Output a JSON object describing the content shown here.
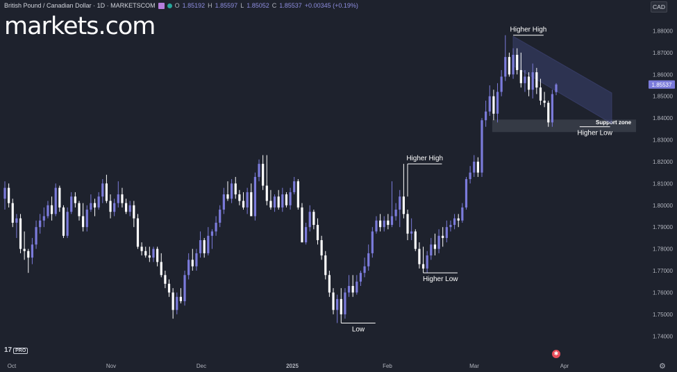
{
  "header": {
    "symbol": "British Pound / Canadian Dollar · 1D · MARKETSCOM",
    "open_label": "O",
    "open": "1.85192",
    "high_label": "H",
    "high": "1.85597",
    "low_label": "L",
    "low": "1.85052",
    "close_label": "C",
    "close": "1.85537",
    "change": "+0.00345 (+0.19%)"
  },
  "brand": "markets.com",
  "currency_button": "CAD",
  "tv_logo": "17",
  "tv_badge": "PRO",
  "colors": {
    "background": "#1e222d",
    "bull": "#7b7bdb",
    "bear": "#ffffff",
    "text": "#d1d4dc",
    "price_label": "#7b7bdb"
  },
  "chart_data": {
    "type": "candlestick",
    "y_axis": {
      "ticks": [
        "1.88000",
        "1.87000",
        "1.86000",
        "1.85000",
        "1.84000",
        "1.83000",
        "1.82000",
        "1.81000",
        "1.80000",
        "1.79000",
        "1.78000",
        "1.77000",
        "1.76000",
        "1.75000",
        "1.74000"
      ],
      "range": [
        1.735,
        1.883
      ]
    },
    "x_axis": {
      "ticks": [
        "Oct",
        "Nov",
        "Dec",
        "2025",
        "Jan",
        "Feb",
        "Mar",
        "Apr"
      ]
    },
    "last_price": "1.85537",
    "candles": [
      {
        "d": "2024-10-01",
        "o": 1.803,
        "h": 1.811,
        "l": 1.798,
        "c": 1.808
      },
      {
        "d": "2024-10-02",
        "o": 1.808,
        "h": 1.81,
        "l": 1.799,
        "c": 1.801
      },
      {
        "d": "2024-10-03",
        "o": 1.801,
        "h": 1.803,
        "l": 1.79,
        "c": 1.792
      },
      {
        "d": "2024-10-04",
        "o": 1.792,
        "h": 1.796,
        "l": 1.785,
        "c": 1.794
      },
      {
        "d": "2024-10-07",
        "o": 1.794,
        "h": 1.796,
        "l": 1.778,
        "c": 1.78
      },
      {
        "d": "2024-10-08",
        "o": 1.78,
        "h": 1.788,
        "l": 1.775,
        "c": 1.779
      },
      {
        "d": "2024-10-09",
        "o": 1.779,
        "h": 1.78,
        "l": 1.769,
        "c": 1.776
      },
      {
        "d": "2024-10-10",
        "o": 1.776,
        "h": 1.785,
        "l": 1.773,
        "c": 1.782
      },
      {
        "d": "2024-10-11",
        "o": 1.782,
        "h": 1.793,
        "l": 1.78,
        "c": 1.79
      },
      {
        "d": "2024-10-14",
        "o": 1.79,
        "h": 1.796,
        "l": 1.787,
        "c": 1.793
      },
      {
        "d": "2024-10-15",
        "o": 1.793,
        "h": 1.799,
        "l": 1.79,
        "c": 1.795
      },
      {
        "d": "2024-10-16",
        "o": 1.795,
        "h": 1.802,
        "l": 1.794,
        "c": 1.8
      },
      {
        "d": "2024-10-17",
        "o": 1.8,
        "h": 1.804,
        "l": 1.793,
        "c": 1.796
      },
      {
        "d": "2024-10-18",
        "o": 1.796,
        "h": 1.81,
        "l": 1.795,
        "c": 1.808
      },
      {
        "d": "2024-10-21",
        "o": 1.808,
        "h": 1.809,
        "l": 1.797,
        "c": 1.799
      },
      {
        "d": "2024-10-22",
        "o": 1.799,
        "h": 1.8,
        "l": 1.785,
        "c": 1.786
      },
      {
        "d": "2024-10-23",
        "o": 1.786,
        "h": 1.799,
        "l": 1.785,
        "c": 1.797
      },
      {
        "d": "2024-10-24",
        "o": 1.797,
        "h": 1.806,
        "l": 1.796,
        "c": 1.804
      },
      {
        "d": "2024-10-25",
        "o": 1.804,
        "h": 1.806,
        "l": 1.799,
        "c": 1.801
      },
      {
        "d": "2024-10-28",
        "o": 1.801,
        "h": 1.802,
        "l": 1.793,
        "c": 1.795
      },
      {
        "d": "2024-10-29",
        "o": 1.795,
        "h": 1.801,
        "l": 1.788,
        "c": 1.79
      },
      {
        "d": "2024-10-30",
        "o": 1.79,
        "h": 1.8,
        "l": 1.788,
        "c": 1.798
      },
      {
        "d": "2024-10-31",
        "o": 1.798,
        "h": 1.805,
        "l": 1.797,
        "c": 1.801
      },
      {
        "d": "2024-11-01",
        "o": 1.801,
        "h": 1.803,
        "l": 1.795,
        "c": 1.799
      },
      {
        "d": "2024-11-04",
        "o": 1.799,
        "h": 1.806,
        "l": 1.798,
        "c": 1.804
      },
      {
        "d": "2024-11-05",
        "o": 1.804,
        "h": 1.812,
        "l": 1.801,
        "c": 1.81
      },
      {
        "d": "2024-11-06",
        "o": 1.81,
        "h": 1.814,
        "l": 1.801,
        "c": 1.802
      },
      {
        "d": "2024-11-07",
        "o": 1.802,
        "h": 1.805,
        "l": 1.794,
        "c": 1.797
      },
      {
        "d": "2024-11-08",
        "o": 1.797,
        "h": 1.803,
        "l": 1.795,
        "c": 1.801
      },
      {
        "d": "2024-11-11",
        "o": 1.801,
        "h": 1.811,
        "l": 1.799,
        "c": 1.805
      },
      {
        "d": "2024-11-12",
        "o": 1.805,
        "h": 1.808,
        "l": 1.799,
        "c": 1.801
      },
      {
        "d": "2024-11-13",
        "o": 1.801,
        "h": 1.803,
        "l": 1.796,
        "c": 1.797
      },
      {
        "d": "2024-11-14",
        "o": 1.797,
        "h": 1.802,
        "l": 1.795,
        "c": 1.8
      },
      {
        "d": "2024-11-15",
        "o": 1.8,
        "h": 1.802,
        "l": 1.79,
        "c": 1.794
      },
      {
        "d": "2024-11-18",
        "o": 1.794,
        "h": 1.796,
        "l": 1.78,
        "c": 1.781
      },
      {
        "d": "2024-11-19",
        "o": 1.781,
        "h": 1.783,
        "l": 1.777,
        "c": 1.779
      },
      {
        "d": "2024-11-20",
        "o": 1.779,
        "h": 1.781,
        "l": 1.776,
        "c": 1.777
      },
      {
        "d": "2024-11-21",
        "o": 1.777,
        "h": 1.781,
        "l": 1.774,
        "c": 1.776
      },
      {
        "d": "2024-11-22",
        "o": 1.776,
        "h": 1.781,
        "l": 1.774,
        "c": 1.78
      },
      {
        "d": "2024-11-25",
        "o": 1.78,
        "h": 1.781,
        "l": 1.772,
        "c": 1.774
      },
      {
        "d": "2024-11-26",
        "o": 1.774,
        "h": 1.778,
        "l": 1.767,
        "c": 1.768
      },
      {
        "d": "2024-11-27",
        "o": 1.768,
        "h": 1.77,
        "l": 1.762,
        "c": 1.764
      },
      {
        "d": "2024-11-28",
        "o": 1.764,
        "h": 1.766,
        "l": 1.758,
        "c": 1.76
      },
      {
        "d": "2024-11-29",
        "o": 1.76,
        "h": 1.762,
        "l": 1.748,
        "c": 1.752
      },
      {
        "d": "2024-12-02",
        "o": 1.752,
        "h": 1.76,
        "l": 1.75,
        "c": 1.758
      },
      {
        "d": "2024-12-03",
        "o": 1.758,
        "h": 1.762,
        "l": 1.755,
        "c": 1.756
      },
      {
        "d": "2024-12-04",
        "o": 1.756,
        "h": 1.77,
        "l": 1.754,
        "c": 1.768
      },
      {
        "d": "2024-12-05",
        "o": 1.768,
        "h": 1.778,
        "l": 1.766,
        "c": 1.775
      },
      {
        "d": "2024-12-06",
        "o": 1.775,
        "h": 1.78,
        "l": 1.77,
        "c": 1.772
      },
      {
        "d": "2024-12-09",
        "o": 1.772,
        "h": 1.78,
        "l": 1.77,
        "c": 1.778
      },
      {
        "d": "2024-12-10",
        "o": 1.778,
        "h": 1.788,
        "l": 1.776,
        "c": 1.784
      },
      {
        "d": "2024-12-11",
        "o": 1.784,
        "h": 1.785,
        "l": 1.776,
        "c": 1.778
      },
      {
        "d": "2024-12-12",
        "o": 1.778,
        "h": 1.79,
        "l": 1.777,
        "c": 1.786
      },
      {
        "d": "2024-12-13",
        "o": 1.786,
        "h": 1.789,
        "l": 1.78,
        "c": 1.788
      },
      {
        "d": "2024-12-16",
        "o": 1.788,
        "h": 1.795,
        "l": 1.786,
        "c": 1.792
      },
      {
        "d": "2024-12-17",
        "o": 1.792,
        "h": 1.8,
        "l": 1.79,
        "c": 1.798
      },
      {
        "d": "2024-12-18",
        "o": 1.798,
        "h": 1.808,
        "l": 1.796,
        "c": 1.805
      },
      {
        "d": "2024-12-19",
        "o": 1.805,
        "h": 1.811,
        "l": 1.802,
        "c": 1.803
      },
      {
        "d": "2024-12-20",
        "o": 1.803,
        "h": 1.812,
        "l": 1.801,
        "c": 1.81
      },
      {
        "d": "2024-12-23",
        "o": 1.81,
        "h": 1.813,
        "l": 1.803,
        "c": 1.805
      },
      {
        "d": "2024-12-24",
        "o": 1.805,
        "h": 1.807,
        "l": 1.8,
        "c": 1.802
      },
      {
        "d": "2024-12-26",
        "o": 1.802,
        "h": 1.806,
        "l": 1.798,
        "c": 1.799
      },
      {
        "d": "2024-12-27",
        "o": 1.799,
        "h": 1.808,
        "l": 1.796,
        "c": 1.806
      },
      {
        "d": "2024-12-30",
        "o": 1.806,
        "h": 1.81,
        "l": 1.795,
        "c": 1.795
      },
      {
        "d": "2024-12-31",
        "o": 1.795,
        "h": 1.815,
        "l": 1.793,
        "c": 1.813
      },
      {
        "d": "2025-01-01",
        "o": 1.813,
        "h": 1.821,
        "l": 1.811,
        "c": 1.819
      },
      {
        "d": "2025-01-02",
        "o": 1.819,
        "h": 1.823,
        "l": 1.807,
        "c": 1.809
      },
      {
        "d": "2025-01-03",
        "o": 1.809,
        "h": 1.823,
        "l": 1.8,
        "c": 1.802
      },
      {
        "d": "2025-01-06",
        "o": 1.802,
        "h": 1.807,
        "l": 1.798,
        "c": 1.799
      },
      {
        "d": "2025-01-07",
        "o": 1.799,
        "h": 1.805,
        "l": 1.797,
        "c": 1.804
      },
      {
        "d": "2025-01-08",
        "o": 1.804,
        "h": 1.807,
        "l": 1.798,
        "c": 1.799
      },
      {
        "d": "2025-01-09",
        "o": 1.799,
        "h": 1.808,
        "l": 1.797,
        "c": 1.805
      },
      {
        "d": "2025-01-10",
        "o": 1.805,
        "h": 1.806,
        "l": 1.799,
        "c": 1.8
      },
      {
        "d": "2025-01-13",
        "o": 1.8,
        "h": 1.808,
        "l": 1.798,
        "c": 1.806
      },
      {
        "d": "2025-01-14",
        "o": 1.806,
        "h": 1.813,
        "l": 1.805,
        "c": 1.811
      },
      {
        "d": "2025-01-15",
        "o": 1.811,
        "h": 1.812,
        "l": 1.798,
        "c": 1.799
      },
      {
        "d": "2025-01-16",
        "o": 1.799,
        "h": 1.801,
        "l": 1.783,
        "c": 1.783
      },
      {
        "d": "2025-01-17",
        "o": 1.783,
        "h": 1.792,
        "l": 1.782,
        "c": 1.79
      },
      {
        "d": "2025-01-20",
        "o": 1.79,
        "h": 1.8,
        "l": 1.788,
        "c": 1.797
      },
      {
        "d": "2025-01-21",
        "o": 1.797,
        "h": 1.798,
        "l": 1.789,
        "c": 1.791
      },
      {
        "d": "2025-01-22",
        "o": 1.791,
        "h": 1.794,
        "l": 1.782,
        "c": 1.784
      },
      {
        "d": "2025-01-23",
        "o": 1.784,
        "h": 1.786,
        "l": 1.775,
        "c": 1.777
      },
      {
        "d": "2025-01-24",
        "o": 1.777,
        "h": 1.779,
        "l": 1.766,
        "c": 1.768
      },
      {
        "d": "2025-01-27",
        "o": 1.768,
        "h": 1.77,
        "l": 1.758,
        "c": 1.76
      },
      {
        "d": "2025-01-28",
        "o": 1.76,
        "h": 1.762,
        "l": 1.75,
        "c": 1.752
      },
      {
        "d": "2025-01-29",
        "o": 1.752,
        "h": 1.759,
        "l": 1.746,
        "c": 1.757
      },
      {
        "d": "2025-01-30",
        "o": 1.757,
        "h": 1.762,
        "l": 1.746,
        "c": 1.75
      },
      {
        "d": "2025-01-31",
        "o": 1.75,
        "h": 1.762,
        "l": 1.748,
        "c": 1.76
      },
      {
        "d": "2025-02-03",
        "o": 1.76,
        "h": 1.768,
        "l": 1.758,
        "c": 1.763
      },
      {
        "d": "2025-02-04",
        "o": 1.763,
        "h": 1.768,
        "l": 1.758,
        "c": 1.76
      },
      {
        "d": "2025-02-05",
        "o": 1.76,
        "h": 1.768,
        "l": 1.759,
        "c": 1.765
      },
      {
        "d": "2025-02-06",
        "o": 1.765,
        "h": 1.77,
        "l": 1.763,
        "c": 1.769
      },
      {
        "d": "2025-02-07",
        "o": 1.769,
        "h": 1.776,
        "l": 1.767,
        "c": 1.772
      },
      {
        "d": "2025-02-10",
        "o": 1.772,
        "h": 1.782,
        "l": 1.77,
        "c": 1.778
      },
      {
        "d": "2025-02-11",
        "o": 1.778,
        "h": 1.79,
        "l": 1.776,
        "c": 1.788
      },
      {
        "d": "2025-02-12",
        "o": 1.788,
        "h": 1.795,
        "l": 1.787,
        "c": 1.793
      },
      {
        "d": "2025-02-13",
        "o": 1.793,
        "h": 1.796,
        "l": 1.788,
        "c": 1.79
      },
      {
        "d": "2025-02-14",
        "o": 1.79,
        "h": 1.795,
        "l": 1.788,
        "c": 1.793
      },
      {
        "d": "2025-02-17",
        "o": 1.793,
        "h": 1.796,
        "l": 1.789,
        "c": 1.791
      },
      {
        "d": "2025-02-18",
        "o": 1.791,
        "h": 1.811,
        "l": 1.79,
        "c": 1.795
      },
      {
        "d": "2025-02-19",
        "o": 1.795,
        "h": 1.801,
        "l": 1.793,
        "c": 1.798
      },
      {
        "d": "2025-02-20",
        "o": 1.798,
        "h": 1.807,
        "l": 1.79,
        "c": 1.804
      },
      {
        "d": "2025-02-21",
        "o": 1.804,
        "h": 1.819,
        "l": 1.794,
        "c": 1.796
      },
      {
        "d": "2025-02-24",
        "o": 1.796,
        "h": 1.798,
        "l": 1.784,
        "c": 1.787
      },
      {
        "d": "2025-02-25",
        "o": 1.787,
        "h": 1.794,
        "l": 1.784,
        "c": 1.788
      },
      {
        "d": "2025-02-26",
        "o": 1.788,
        "h": 1.789,
        "l": 1.779,
        "c": 1.78
      },
      {
        "d": "2025-02-27",
        "o": 1.78,
        "h": 1.783,
        "l": 1.771,
        "c": 1.773
      },
      {
        "d": "2025-02-28",
        "o": 1.773,
        "h": 1.781,
        "l": 1.769,
        "c": 1.771
      },
      {
        "d": "2025-03-03",
        "o": 1.771,
        "h": 1.779,
        "l": 1.769,
        "c": 1.777
      },
      {
        "d": "2025-03-04",
        "o": 1.777,
        "h": 1.785,
        "l": 1.775,
        "c": 1.782
      },
      {
        "d": "2025-03-05",
        "o": 1.782,
        "h": 1.787,
        "l": 1.777,
        "c": 1.78
      },
      {
        "d": "2025-03-06",
        "o": 1.78,
        "h": 1.789,
        "l": 1.778,
        "c": 1.786
      },
      {
        "d": "2025-03-07",
        "o": 1.786,
        "h": 1.79,
        "l": 1.781,
        "c": 1.785
      },
      {
        "d": "2025-03-10",
        "o": 1.785,
        "h": 1.793,
        "l": 1.783,
        "c": 1.79
      },
      {
        "d": "2025-03-11",
        "o": 1.79,
        "h": 1.793,
        "l": 1.788,
        "c": 1.791
      },
      {
        "d": "2025-03-12",
        "o": 1.791,
        "h": 1.796,
        "l": 1.789,
        "c": 1.794
      },
      {
        "d": "2025-03-13",
        "o": 1.794,
        "h": 1.796,
        "l": 1.79,
        "c": 1.793
      },
      {
        "d": "2025-03-14",
        "o": 1.793,
        "h": 1.801,
        "l": 1.792,
        "c": 1.799
      },
      {
        "d": "2025-03-17",
        "o": 1.799,
        "h": 1.813,
        "l": 1.798,
        "c": 1.812
      },
      {
        "d": "2025-03-18",
        "o": 1.812,
        "h": 1.818,
        "l": 1.81,
        "c": 1.815
      },
      {
        "d": "2025-03-19",
        "o": 1.815,
        "h": 1.823,
        "l": 1.813,
        "c": 1.82
      },
      {
        "d": "2025-03-20",
        "o": 1.82,
        "h": 1.822,
        "l": 1.813,
        "c": 1.815
      },
      {
        "d": "2025-03-21",
        "o": 1.815,
        "h": 1.84,
        "l": 1.813,
        "c": 1.839
      },
      {
        "d": "2025-03-24",
        "o": 1.839,
        "h": 1.848,
        "l": 1.836,
        "c": 1.843
      },
      {
        "d": "2025-03-25",
        "o": 1.843,
        "h": 1.855,
        "l": 1.841,
        "c": 1.85
      },
      {
        "d": "2025-03-26",
        "o": 1.85,
        "h": 1.853,
        "l": 1.839,
        "c": 1.842
      },
      {
        "d": "2025-03-27",
        "o": 1.842,
        "h": 1.856,
        "l": 1.838,
        "c": 1.852
      },
      {
        "d": "2025-03-28",
        "o": 1.852,
        "h": 1.862,
        "l": 1.85,
        "c": 1.859
      },
      {
        "d": "2025-03-31",
        "o": 1.859,
        "h": 1.878,
        "l": 1.857,
        "c": 1.868
      },
      {
        "d": "2025-04-01",
        "o": 1.868,
        "h": 1.87,
        "l": 1.859,
        "c": 1.86
      },
      {
        "d": "2025-04-02",
        "o": 1.86,
        "h": 1.872,
        "l": 1.858,
        "c": 1.869
      },
      {
        "d": "2025-04-03",
        "o": 1.869,
        "h": 1.872,
        "l": 1.86,
        "c": 1.862
      },
      {
        "d": "2025-04-04",
        "o": 1.862,
        "h": 1.87,
        "l": 1.854,
        "c": 1.856
      },
      {
        "d": "2025-04-07",
        "o": 1.856,
        "h": 1.862,
        "l": 1.852,
        "c": 1.859
      },
      {
        "d": "2025-04-08",
        "o": 1.859,
        "h": 1.861,
        "l": 1.85,
        "c": 1.853
      },
      {
        "d": "2025-04-09",
        "o": 1.853,
        "h": 1.865,
        "l": 1.849,
        "c": 1.861
      },
      {
        "d": "2025-04-10",
        "o": 1.861,
        "h": 1.863,
        "l": 1.851,
        "c": 1.854
      },
      {
        "d": "2025-04-11",
        "o": 1.854,
        "h": 1.858,
        "l": 1.846,
        "c": 1.848
      },
      {
        "d": "2025-04-14",
        "o": 1.848,
        "h": 1.852,
        "l": 1.845,
        "c": 1.847
      },
      {
        "d": "2025-04-15",
        "o": 1.847,
        "h": 1.848,
        "l": 1.836,
        "c": 1.838
      },
      {
        "d": "2025-04-16",
        "o": 1.838,
        "h": 1.853,
        "l": 1.836,
        "c": 1.851
      },
      {
        "d": "2025-04-17",
        "o": 1.8519,
        "h": 1.856,
        "l": 1.8505,
        "c": 1.8554
      }
    ],
    "annotations": [
      {
        "text": "Higher High",
        "price": 1.878,
        "idx_from": 130,
        "idx_to": 136,
        "anchor": "top"
      },
      {
        "text": "Higher Low",
        "price": 1.836,
        "idx_from": 147,
        "idx_to": 153,
        "anchor": "bottom"
      },
      {
        "text": "Higher High",
        "price": 1.819,
        "idx_from": 103,
        "idx_to": 110,
        "anchor": "top"
      },
      {
        "text": "Higher Low",
        "price": 1.769,
        "idx_from": 107,
        "idx_to": 114,
        "anchor": "bottom"
      },
      {
        "text": "Low",
        "price": 1.746,
        "idx_from": 86,
        "idx_to": 93,
        "anchor": "bottom"
      }
    ],
    "support_zone": {
      "label": "Support zone",
      "low": 1.8358,
      "high": 1.839,
      "from_idx": 125
    },
    "channel": {
      "from_idx": 130,
      "to_idx": 152,
      "top_start": 1.8775,
      "top_end": 1.8515,
      "bottom_start": 1.864,
      "bottom_end": 1.8375
    }
  }
}
